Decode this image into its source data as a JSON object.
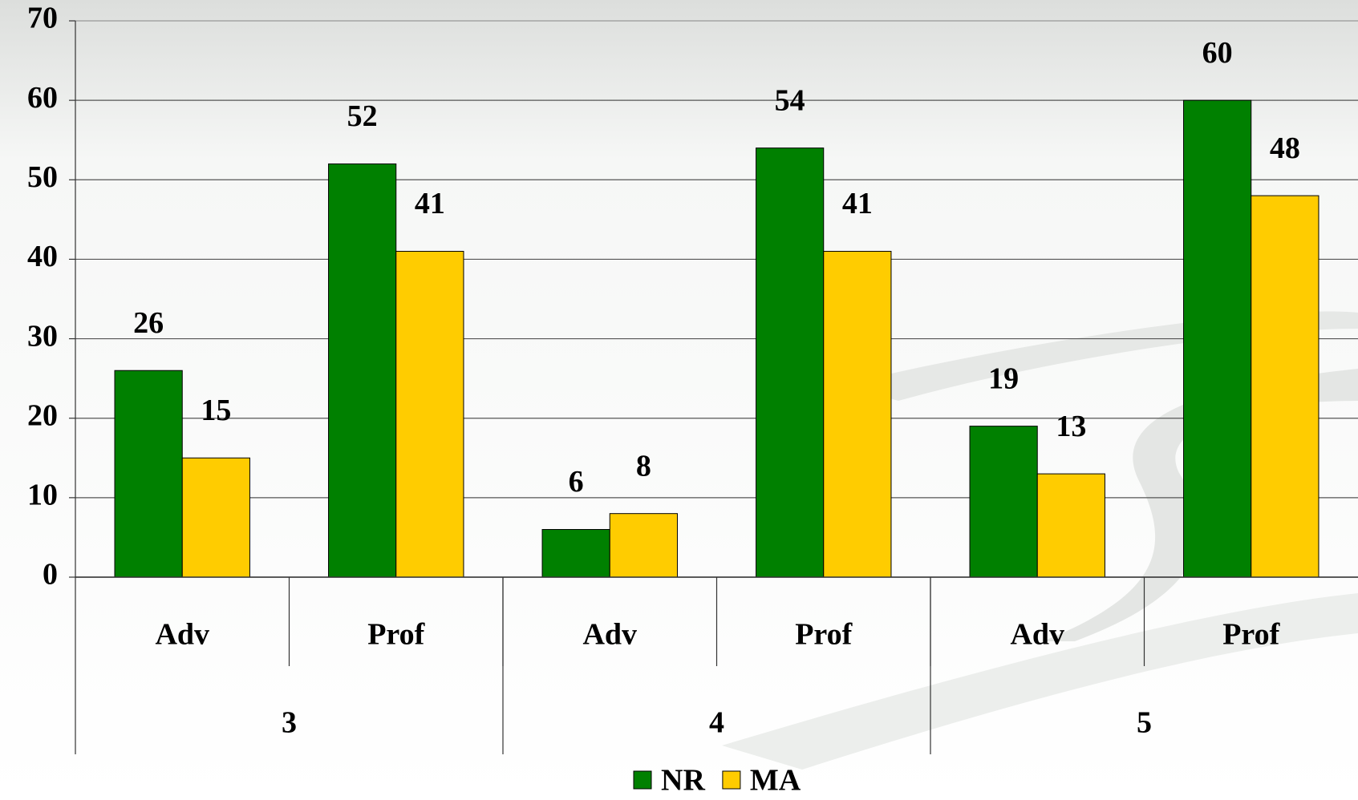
{
  "chart_data": {
    "type": "bar",
    "categories": [
      "Adv",
      "Prof",
      "Adv",
      "Prof",
      "Adv",
      "Prof"
    ],
    "groups": [
      "3",
      "4",
      "5"
    ],
    "series": [
      {
        "name": "NR",
        "color": "#008000",
        "values": [
          26,
          52,
          6,
          54,
          19,
          60
        ]
      },
      {
        "name": "MA",
        "color": "#ffcc00",
        "values": [
          15,
          41,
          8,
          41,
          13,
          48
        ]
      }
    ],
    "ylim": [
      0,
      70
    ],
    "yticks": [
      0,
      10,
      20,
      30,
      40,
      50,
      60,
      70
    ],
    "grid": true,
    "legend": "bottom"
  }
}
